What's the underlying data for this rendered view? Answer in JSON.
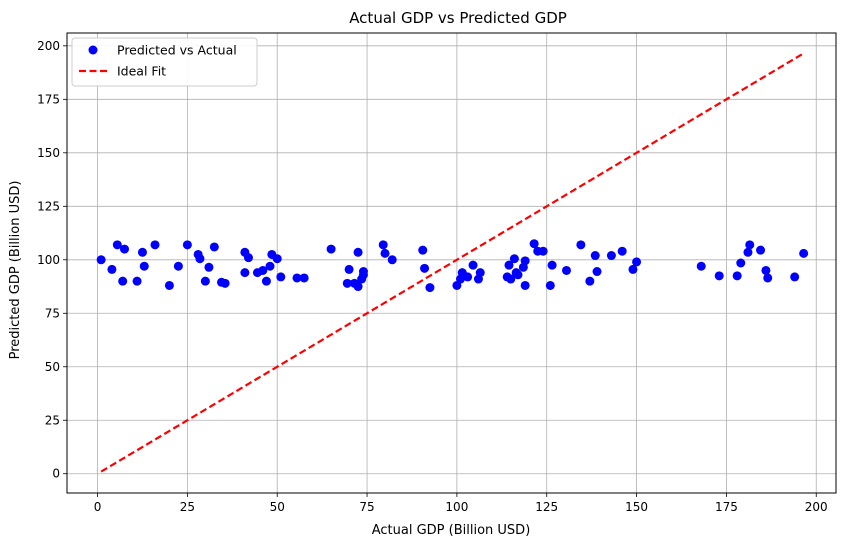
{
  "chart_data": {
    "type": "scatter",
    "title": "Actual GDP vs Predicted GDP",
    "xlabel": "Actual GDP (Billion USD)",
    "ylabel": "Predicted GDP (Billion USD)",
    "xlim": [
      -8.5,
      205.5
    ],
    "ylim": [
      -9,
      206
    ],
    "xticks": [
      0,
      25,
      50,
      75,
      100,
      125,
      150,
      175,
      200
    ],
    "yticks": [
      0,
      25,
      50,
      75,
      100,
      125,
      150,
      175,
      200
    ],
    "grid": true,
    "legend_position": "upper-left",
    "series": [
      {
        "name": "Predicted vs Actual",
        "kind": "scatter",
        "color": "#0000ff",
        "points": [
          [
            1,
            100
          ],
          [
            4,
            95.5
          ],
          [
            5.5,
            107
          ],
          [
            7,
            90
          ],
          [
            7.5,
            105
          ],
          [
            11,
            90
          ],
          [
            12.5,
            103.5
          ],
          [
            13,
            97
          ],
          [
            16,
            107
          ],
          [
            20,
            88
          ],
          [
            22.5,
            97
          ],
          [
            25,
            107
          ],
          [
            28,
            102.5
          ],
          [
            28.5,
            100.5
          ],
          [
            30,
            90
          ],
          [
            31,
            96.5
          ],
          [
            32.5,
            106
          ],
          [
            34.5,
            89.5
          ],
          [
            35.5,
            89
          ],
          [
            41,
            94
          ],
          [
            41,
            103.5
          ],
          [
            42,
            101
          ],
          [
            44.5,
            94
          ],
          [
            46,
            95
          ],
          [
            47,
            90
          ],
          [
            48,
            97
          ],
          [
            48.5,
            102.5
          ],
          [
            50,
            100.5
          ],
          [
            51,
            92
          ],
          [
            55.5,
            91.5
          ],
          [
            57.5,
            91.5
          ],
          [
            65,
            105
          ],
          [
            69.5,
            89
          ],
          [
            70,
            95.5
          ],
          [
            71.5,
            89
          ],
          [
            72.5,
            87.5
          ],
          [
            72.5,
            103.5
          ],
          [
            73.5,
            91
          ],
          [
            74,
            93
          ],
          [
            74,
            94.5
          ],
          [
            79.5,
            107
          ],
          [
            80,
            103
          ],
          [
            82,
            100
          ],
          [
            90.5,
            104.5
          ],
          [
            91,
            96
          ],
          [
            92.5,
            87
          ],
          [
            100,
            88
          ],
          [
            101,
            91
          ],
          [
            101.5,
            94
          ],
          [
            103,
            92
          ],
          [
            104.5,
            97.5
          ],
          [
            106,
            91
          ],
          [
            106.5,
            94
          ],
          [
            114,
            92
          ],
          [
            114.5,
            97.5
          ],
          [
            115,
            91
          ],
          [
            116,
            100.5
          ],
          [
            116.5,
            94
          ],
          [
            117,
            93
          ],
          [
            118.5,
            96.5
          ],
          [
            119,
            88
          ],
          [
            119,
            99.5
          ],
          [
            121.5,
            107.5
          ],
          [
            122.5,
            104
          ],
          [
            124,
            104
          ],
          [
            126,
            88
          ],
          [
            126.5,
            97.5
          ],
          [
            130.5,
            95
          ],
          [
            134.5,
            107
          ],
          [
            137,
            90
          ],
          [
            138.5,
            102
          ],
          [
            139,
            94.5
          ],
          [
            143,
            102
          ],
          [
            146,
            104
          ],
          [
            149,
            95.5
          ],
          [
            150,
            99
          ],
          [
            168,
            97
          ],
          [
            173,
            92.5
          ],
          [
            178,
            92.5
          ],
          [
            179,
            98.5
          ],
          [
            181,
            103.5
          ],
          [
            181.5,
            107
          ],
          [
            184.5,
            104.5
          ],
          [
            186,
            95
          ],
          [
            186.5,
            91.5
          ],
          [
            194,
            92
          ],
          [
            196.5,
            103
          ]
        ]
      },
      {
        "name": "Ideal Fit",
        "kind": "line",
        "color": "#ff0000",
        "dash": "dashed",
        "points": [
          [
            1,
            1
          ],
          [
            196.5,
            196.5
          ]
        ]
      }
    ]
  }
}
